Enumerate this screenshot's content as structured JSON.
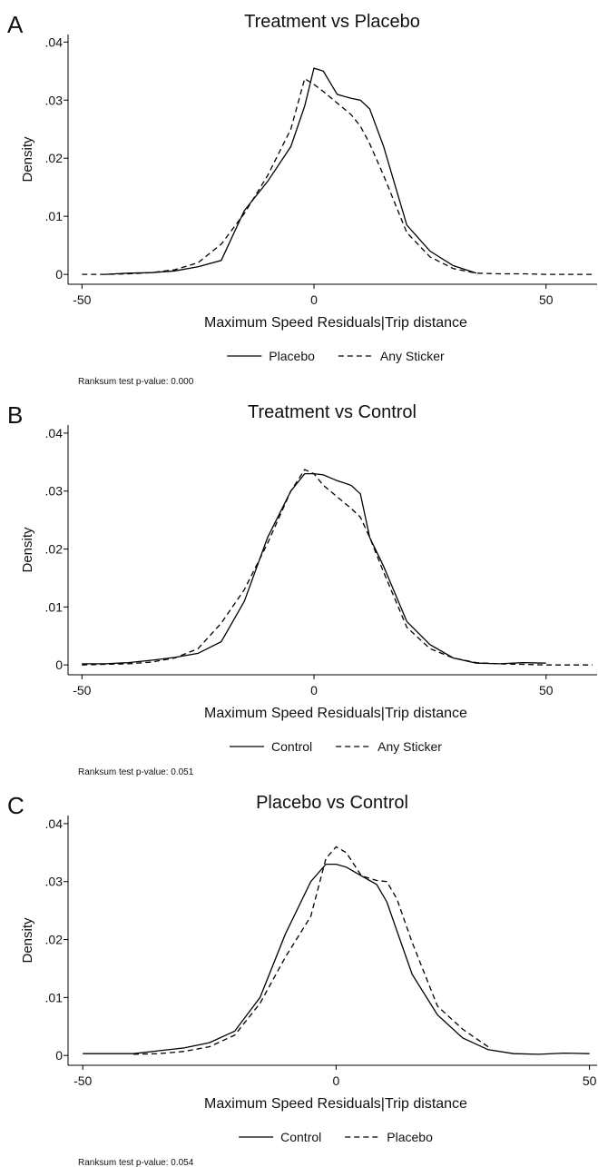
{
  "chart_data": [
    {
      "type": "line",
      "panel": "A",
      "title": "Treatment vs Placebo",
      "ylabel": "Density",
      "xlabel": "Maximum Speed Residuals|Trip distance",
      "note": "Ranksum test p-value: 0.000",
      "x": [
        -50,
        -45,
        -40,
        -35,
        -30,
        -25,
        -20,
        -15,
        -10,
        -5,
        -2,
        0,
        2,
        5,
        8,
        10,
        12,
        15,
        20,
        25,
        30,
        35,
        40,
        45,
        50,
        55,
        60
      ],
      "series": [
        {
          "name": "Placebo",
          "color": "#000000",
          "linestyle": "solid",
          "values": [
            null,
            0,
            0.0002,
            0.0003,
            0.0006,
            0.0013,
            0.0024,
            0.011,
            0.016,
            0.022,
            0.029,
            0.0355,
            0.035,
            0.031,
            0.0303,
            0.03,
            0.0285,
            0.022,
            0.0085,
            0.004,
            0.0015,
            0.0002,
            null,
            null,
            null,
            null,
            null
          ]
        },
        {
          "name": "Any Sticker",
          "color": "#000000",
          "linestyle": "dashed",
          "values": [
            0,
            0,
            0.0001,
            0.0003,
            0.0008,
            0.002,
            0.0052,
            0.0105,
            0.017,
            0.025,
            0.0337,
            0.0327,
            0.0315,
            0.0295,
            0.0275,
            0.0255,
            0.0225,
            0.017,
            0.0072,
            0.003,
            0.001,
            0.0002,
            0.0001,
            0.0001,
            0,
            0,
            0
          ]
        }
      ],
      "xlim": [
        -53,
        61
      ],
      "ylim": [
        -0.0017,
        0.0413
      ],
      "xticks": [
        -50,
        0,
        50
      ],
      "yticks": [
        0,
        {
          "value": 0.01,
          "label": ".01"
        },
        {
          "value": 0.02,
          "label": ".02"
        },
        {
          "value": 0.03,
          "label": ".03"
        },
        {
          "value": 0.04,
          "label": ".04"
        }
      ]
    },
    {
      "type": "line",
      "panel": "B",
      "title": "Treatment vs Control",
      "ylabel": "Density",
      "xlabel": "Maximum Speed Residuals|Trip distance",
      "note": "Ranksum test p-value: 0.051",
      "x": [
        -50,
        -45,
        -40,
        -35,
        -30,
        -25,
        -20,
        -15,
        -10,
        -5,
        -2,
        0,
        2,
        5,
        8,
        10,
        12,
        15,
        20,
        25,
        30,
        35,
        40,
        45,
        50,
        55,
        60
      ],
      "series": [
        {
          "name": "Control",
          "color": "#000000",
          "linestyle": "solid",
          "values": [
            0.0002,
            0.0002,
            0.0004,
            0.0008,
            0.0013,
            0.002,
            0.004,
            0.011,
            0.022,
            0.03,
            0.033,
            0.033,
            0.0328,
            0.0318,
            0.031,
            0.0295,
            0.022,
            0.017,
            0.0075,
            0.0035,
            0.0012,
            0.0003,
            0.0002,
            0.0004,
            0.0003,
            null,
            null
          ]
        },
        {
          "name": "Any Sticker",
          "color": "#000000",
          "linestyle": "dashed",
          "values": [
            0,
            0.0001,
            0.0002,
            0.0005,
            0.0012,
            0.0028,
            0.0072,
            0.013,
            0.021,
            0.03,
            0.0337,
            0.033,
            0.031,
            0.029,
            0.027,
            0.0255,
            0.022,
            0.016,
            0.0065,
            0.0028,
            0.0012,
            0.0004,
            0.0002,
            0.0001,
            0,
            0,
            0
          ]
        }
      ],
      "xlim": [
        -53,
        61
      ],
      "ylim": [
        -0.0017,
        0.0414
      ],
      "xticks": [
        -50,
        0,
        50
      ],
      "yticks": [
        0,
        {
          "value": 0.01,
          "label": ".01"
        },
        {
          "value": 0.02,
          "label": ".02"
        },
        {
          "value": 0.03,
          "label": ".03"
        },
        {
          "value": 0.04,
          "label": ".04"
        }
      ]
    },
    {
      "type": "line",
      "panel": "C",
      "title": "Placebo vs Control",
      "ylabel": "Density",
      "xlabel": "Maximum Speed Residuals|Trip distance",
      "note": "Ranksum test p-value: 0.054",
      "x": [
        -50,
        -45,
        -40,
        -35,
        -30,
        -25,
        -20,
        -15,
        -10,
        -5,
        -2,
        0,
        2,
        5,
        8,
        10,
        12,
        15,
        20,
        25,
        30,
        35,
        40,
        45,
        50
      ],
      "series": [
        {
          "name": "Control",
          "color": "#000000",
          "linestyle": "solid",
          "values": [
            0.0003,
            0.0003,
            0.0003,
            0.0008,
            0.0013,
            0.0022,
            0.0042,
            0.01,
            0.021,
            0.03,
            0.033,
            0.033,
            0.0325,
            0.031,
            0.0295,
            0.0265,
            0.0215,
            0.014,
            0.007,
            0.003,
            0.001,
            0.0003,
            0.0002,
            0.0004,
            0.0003
          ]
        },
        {
          "name": "Placebo",
          "color": "#000000",
          "linestyle": "dashed",
          "values": [
            null,
            null,
            0.0002,
            0.0003,
            0.0007,
            0.0015,
            0.0035,
            0.009,
            0.017,
            0.024,
            0.034,
            0.036,
            0.035,
            0.031,
            0.0302,
            0.03,
            0.027,
            0.0195,
            0.0085,
            0.0045,
            0.0015,
            null,
            null,
            null,
            null
          ]
        }
      ],
      "xlim": [
        -52.9,
        51.5
      ],
      "ylim": [
        -0.0017,
        0.0414
      ],
      "xticks": [
        -50,
        0,
        50
      ],
      "yticks": [
        0,
        {
          "value": 0.01,
          "label": ".01"
        },
        {
          "value": 0.02,
          "label": ".02"
        },
        {
          "value": 0.03,
          "label": ".03"
        },
        {
          "value": 0.04,
          "label": ".04"
        }
      ]
    }
  ]
}
